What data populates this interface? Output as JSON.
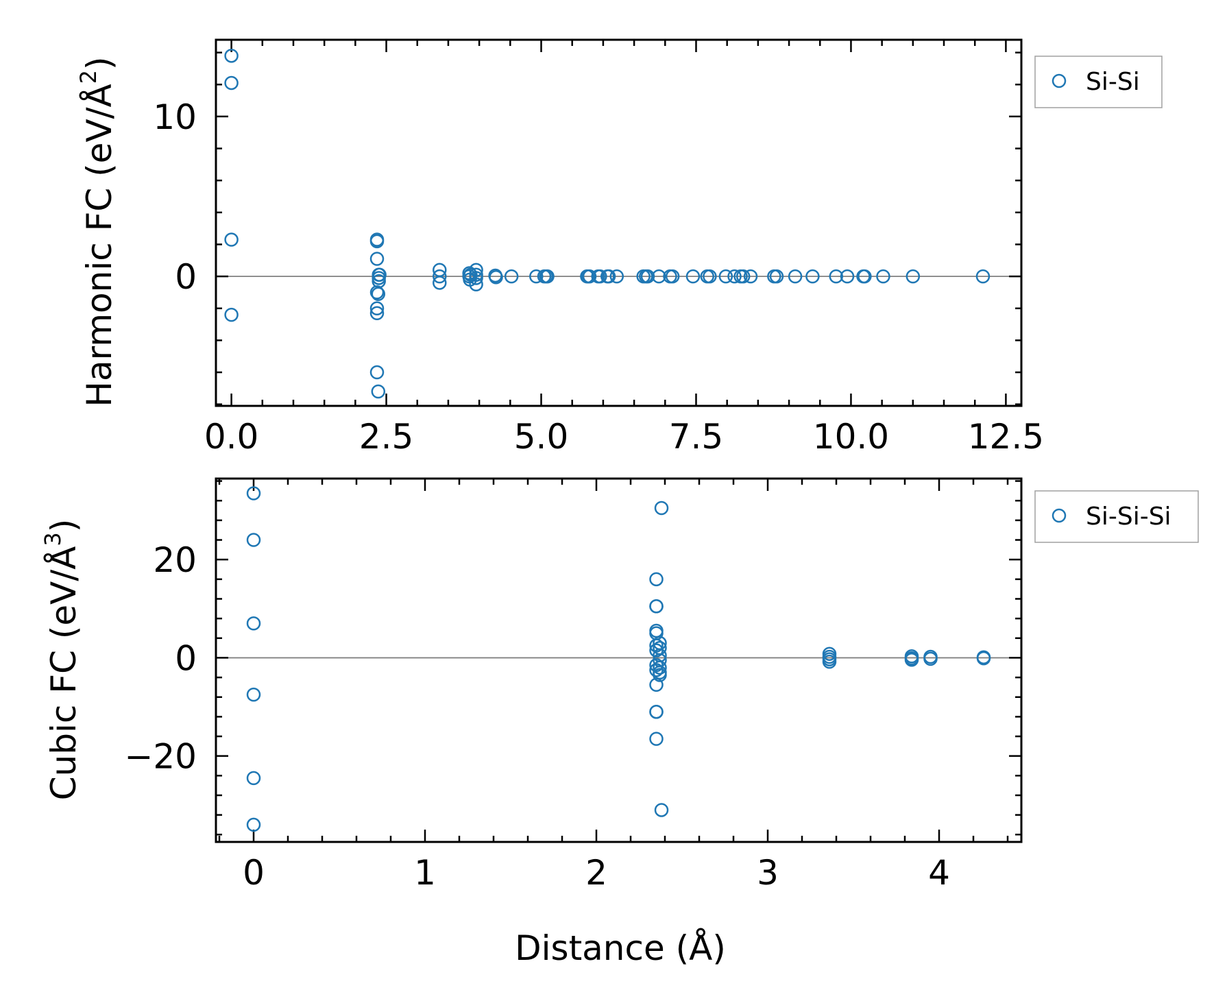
{
  "chart_data": [
    {
      "type": "scatter",
      "ylabel": "Harmonic FC (eV/Å²)",
      "ylabel_parts": [
        "Harmonic FC (eV/Å",
        "2",
        ")"
      ],
      "xlim": [
        -0.25,
        12.75
      ],
      "ylim": [
        -8.1,
        14.8
      ],
      "xticks": [
        0.0,
        2.5,
        5.0,
        7.5,
        10.0,
        12.5
      ],
      "xtick_labels": [
        "0.0",
        "2.5",
        "5.0",
        "7.5",
        "10.0",
        "12.5"
      ],
      "yticks": [
        0,
        10
      ],
      "ytick_labels": [
        "0",
        "10"
      ],
      "legend_position": "outside-top-right",
      "zero_line": true,
      "grid": false,
      "series": [
        {
          "name": "Si-Si",
          "color": "#1f77b4",
          "marker": "open-circle",
          "x": [
            0.0,
            0.0,
            0.0,
            0.0,
            2.35,
            2.35,
            2.35,
            2.35,
            2.35,
            2.35,
            2.35,
            2.37,
            2.37,
            2.38,
            2.38,
            2.38,
            2.39,
            3.36,
            3.36,
            3.36,
            3.84,
            3.84,
            3.85,
            3.86,
            3.95,
            3.95,
            3.95,
            3.95,
            4.26,
            4.27,
            4.52,
            4.92,
            5.05,
            5.08,
            5.1,
            5.74,
            5.76,
            5.78,
            5.92,
            5.95,
            6.07,
            6.09,
            6.22,
            6.65,
            6.69,
            6.72,
            6.9,
            7.08,
            7.12,
            7.45,
            7.68,
            7.72,
            7.98,
            8.12,
            8.22,
            8.26,
            8.38,
            8.76,
            8.8,
            9.1,
            9.38,
            9.76,
            9.94,
            10.2,
            10.22,
            10.52,
            11.0,
            12.13
          ],
          "y": [
            13.8,
            12.1,
            2.3,
            -2.4,
            2.3,
            2.2,
            1.1,
            -1.0,
            -2.0,
            -2.3,
            -6.0,
            -1.1,
            -7.2,
            0.1,
            -0.1,
            -0.3,
            0.1,
            0.4,
            0.0,
            -0.4,
            0.2,
            0.0,
            -0.2,
            0.1,
            0.4,
            0.1,
            -0.1,
            -0.5,
            0.05,
            -0.05,
            0.0,
            0.0,
            0.0,
            0.0,
            0.0,
            0.0,
            0.0,
            0.0,
            0.0,
            0.0,
            0.0,
            0.0,
            0.0,
            0.0,
            0.0,
            0.0,
            0.0,
            0.0,
            0.0,
            0.0,
            0.0,
            0.0,
            0.0,
            0.0,
            0.0,
            0.0,
            0.0,
            0.0,
            0.0,
            0.0,
            0.0,
            0.0,
            0.0,
            0.0,
            0.0,
            0.0,
            0.0,
            0.0
          ]
        }
      ]
    },
    {
      "type": "scatter",
      "xlabel": "Distance (Å)",
      "ylabel": "Cubic FC (eV/Å³)",
      "ylabel_parts": [
        "Cubic FC (eV/Å",
        "3",
        ")"
      ],
      "xlim": [
        -0.22,
        4.48
      ],
      "ylim": [
        -37.5,
        36.5
      ],
      "xticks": [
        0,
        1,
        2,
        3,
        4
      ],
      "xtick_labels": [
        "0",
        "1",
        "2",
        "3",
        "4"
      ],
      "yticks": [
        -20,
        0,
        20
      ],
      "ytick_labels": [
        "−20",
        "0",
        "20"
      ],
      "legend_position": "outside-top-right",
      "zero_line": true,
      "grid": false,
      "series": [
        {
          "name": "Si-Si-Si",
          "color": "#1f77b4",
          "marker": "open-circle",
          "x": [
            0.0,
            0.0,
            0.0,
            0.0,
            0.0,
            0.0,
            2.35,
            2.35,
            2.35,
            2.35,
            2.35,
            2.35,
            2.35,
            2.35,
            2.35,
            2.35,
            2.35,
            2.35,
            2.35,
            2.37,
            2.37,
            2.37,
            2.37,
            2.37,
            2.37,
            2.37,
            2.38,
            2.38,
            3.36,
            3.36,
            3.36,
            3.36,
            3.84,
            3.84,
            3.84,
            3.95,
            3.95,
            4.26,
            4.26
          ],
          "y": [
            33.5,
            24.0,
            7.0,
            -7.5,
            -24.5,
            -34.0,
            16.0,
            10.5,
            10.5,
            5.5,
            5.0,
            2.5,
            1.5,
            -1.5,
            -2.5,
            -5.5,
            -11.0,
            -11.0,
            -16.5,
            3.0,
            2.0,
            0.5,
            -0.5,
            -2.0,
            -3.0,
            -3.5,
            30.5,
            -31.0,
            0.8,
            0.2,
            -0.3,
            -0.8,
            0.3,
            -0.1,
            -0.4,
            0.2,
            -0.2,
            0.1,
            -0.1
          ]
        }
      ]
    }
  ]
}
